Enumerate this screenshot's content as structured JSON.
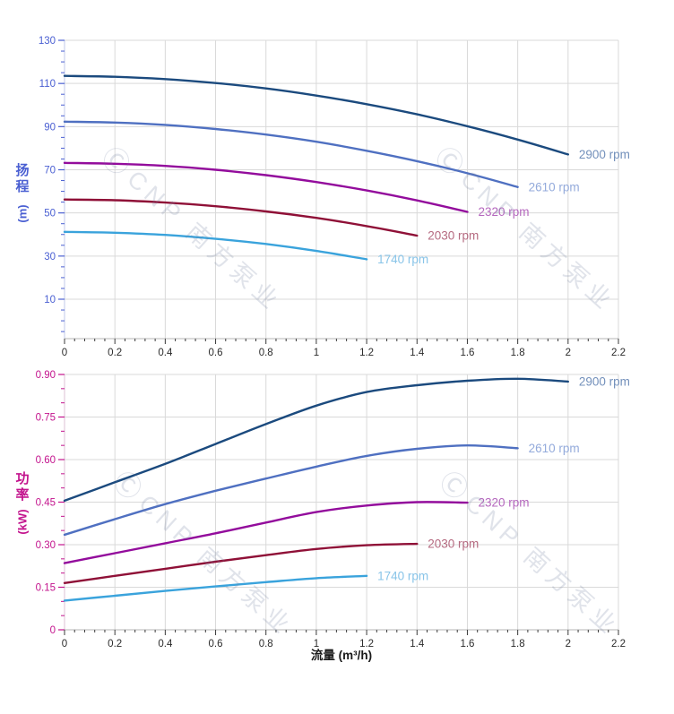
{
  "watermark": {
    "logo": "Ⓒ",
    "text": "CNP 南方泵业"
  },
  "x_axis": {
    "title": "流量 (m³/h)",
    "tick_labels": [
      "0",
      "0.2",
      "0.4",
      "0.6",
      "0.8",
      "1",
      "1.2",
      "1.4",
      "1.6",
      "1.8",
      "2",
      "2.2"
    ],
    "tick_values": [
      0,
      0.2,
      0.4,
      0.6,
      0.8,
      1,
      1.2,
      1.4,
      1.6,
      1.8,
      2,
      2.2
    ],
    "min": 0,
    "max": 2.2,
    "minor_step": 0.04,
    "label_color": "#2b2b2b"
  },
  "chart_data": [
    {
      "type": "line",
      "name": "head-vs-flow",
      "ylabel_cn": "扬程",
      "ylabel_unit": "(m)",
      "xlabel": "",
      "axis_color": "#4a5fd2",
      "grid": true,
      "legend_position": "end-of-line",
      "xlim": [
        0,
        2.2
      ],
      "ylim": [
        -8,
        130
      ],
      "y_tick_values": [
        130,
        110,
        90,
        70,
        50,
        30,
        10
      ],
      "y_tick_labels": [
        "130",
        "110",
        "90",
        "70",
        "50",
        "30",
        "10"
      ],
      "y_minor_step": 5,
      "series": [
        {
          "name": "2900 rpm",
          "color": "#1b4a7e",
          "label_color": "#7390bb",
          "points": [
            [
              0,
              113.5
            ],
            [
              0.2,
              113.1
            ],
            [
              0.4,
              112.0
            ],
            [
              0.6,
              110.2
            ],
            [
              0.8,
              107.7
            ],
            [
              1.0,
              104.4
            ],
            [
              1.2,
              100.4
            ],
            [
              1.4,
              95.7
            ],
            [
              1.6,
              90.2
            ],
            [
              1.8,
              84.0
            ],
            [
              2.0,
              77.1
            ]
          ]
        },
        {
          "name": "2610 rpm",
          "color": "#4f70c1",
          "label_color": "#93aadb",
          "points": [
            [
              0,
              92.3
            ],
            [
              0.2,
              91.9
            ],
            [
              0.4,
              90.8
            ],
            [
              0.6,
              88.9
            ],
            [
              0.8,
              86.3
            ],
            [
              1.0,
              83.0
            ],
            [
              1.2,
              78.8
            ],
            [
              1.4,
              74.0
            ],
            [
              1.6,
              68.4
            ],
            [
              1.8,
              62.0
            ]
          ]
        },
        {
          "name": "2320 rpm",
          "color": "#930c9c",
          "label_color": "#b568be",
          "points": [
            [
              0,
              73.2
            ],
            [
              0.2,
              72.8
            ],
            [
              0.4,
              71.8
            ],
            [
              0.6,
              70.0
            ],
            [
              0.8,
              67.5
            ],
            [
              1.0,
              64.3
            ],
            [
              1.2,
              60.4
            ],
            [
              1.4,
              55.8
            ],
            [
              1.6,
              50.5
            ]
          ]
        },
        {
          "name": "2030 rpm",
          "color": "#8f1037",
          "label_color": "#b56a80",
          "points": [
            [
              0,
              56.2
            ],
            [
              0.2,
              55.9
            ],
            [
              0.4,
              54.8
            ],
            [
              0.6,
              53.1
            ],
            [
              0.8,
              50.7
            ],
            [
              1.0,
              47.7
            ],
            [
              1.2,
              43.9
            ],
            [
              1.4,
              39.5
            ]
          ]
        },
        {
          "name": "1740 rpm",
          "color": "#3aa3dc",
          "label_color": "#88c4e8",
          "points": [
            [
              0,
              41.2
            ],
            [
              0.2,
              40.8
            ],
            [
              0.4,
              39.8
            ],
            [
              0.6,
              38.0
            ],
            [
              0.8,
              35.6
            ],
            [
              1.0,
              32.4
            ],
            [
              1.2,
              28.5
            ]
          ]
        }
      ]
    },
    {
      "type": "line",
      "name": "power-vs-flow",
      "ylabel_cn": "功率",
      "ylabel_unit": "(kW)",
      "xlabel": "流量 (m³/h)",
      "axis_color": "#c3138d",
      "grid": true,
      "legend_position": "end-of-line",
      "xlim": [
        0,
        2.2
      ],
      "ylim": [
        0,
        0.9
      ],
      "y_tick_values": [
        0.9,
        0.75,
        0.6,
        0.45,
        0.3,
        0.15,
        0
      ],
      "y_tick_labels": [
        "0.90",
        "0.75",
        "0.60",
        "0.45",
        "0.30",
        "0.15",
        "0"
      ],
      "y_minor_step": 0.05,
      "series": [
        {
          "name": "2900 rpm",
          "color": "#1b4a7e",
          "label_color": "#7390bb",
          "points": [
            [
              0,
              0.455
            ],
            [
              0.2,
              0.52
            ],
            [
              0.4,
              0.585
            ],
            [
              0.6,
              0.655
            ],
            [
              0.8,
              0.725
            ],
            [
              1.0,
              0.79
            ],
            [
              1.2,
              0.838
            ],
            [
              1.4,
              0.862
            ],
            [
              1.6,
              0.878
            ],
            [
              1.8,
              0.885
            ],
            [
              2.0,
              0.875
            ]
          ]
        },
        {
          "name": "2610 rpm",
          "color": "#4f70c1",
          "label_color": "#93aadb",
          "points": [
            [
              0,
              0.335
            ],
            [
              0.2,
              0.39
            ],
            [
              0.4,
              0.443
            ],
            [
              0.6,
              0.49
            ],
            [
              0.8,
              0.533
            ],
            [
              1.0,
              0.575
            ],
            [
              1.2,
              0.613
            ],
            [
              1.4,
              0.638
            ],
            [
              1.6,
              0.65
            ],
            [
              1.8,
              0.64
            ]
          ]
        },
        {
          "name": "2320 rpm",
          "color": "#930c9c",
          "label_color": "#b568be",
          "points": [
            [
              0,
              0.235
            ],
            [
              0.2,
              0.27
            ],
            [
              0.4,
              0.305
            ],
            [
              0.6,
              0.34
            ],
            [
              0.8,
              0.378
            ],
            [
              1.0,
              0.415
            ],
            [
              1.2,
              0.438
            ],
            [
              1.4,
              0.45
            ],
            [
              1.6,
              0.448
            ]
          ]
        },
        {
          "name": "2030 rpm",
          "color": "#8f1037",
          "label_color": "#b56a80",
          "points": [
            [
              0,
              0.165
            ],
            [
              0.2,
              0.19
            ],
            [
              0.4,
              0.215
            ],
            [
              0.6,
              0.24
            ],
            [
              0.8,
              0.263
            ],
            [
              1.0,
              0.285
            ],
            [
              1.2,
              0.298
            ],
            [
              1.4,
              0.303
            ]
          ]
        },
        {
          "name": "1740 rpm",
          "color": "#3aa3dc",
          "label_color": "#88c4e8",
          "points": [
            [
              0,
              0.103
            ],
            [
              0.2,
              0.12
            ],
            [
              0.4,
              0.137
            ],
            [
              0.6,
              0.153
            ],
            [
              0.8,
              0.168
            ],
            [
              1.0,
              0.182
            ],
            [
              1.2,
              0.19
            ]
          ]
        }
      ]
    }
  ]
}
